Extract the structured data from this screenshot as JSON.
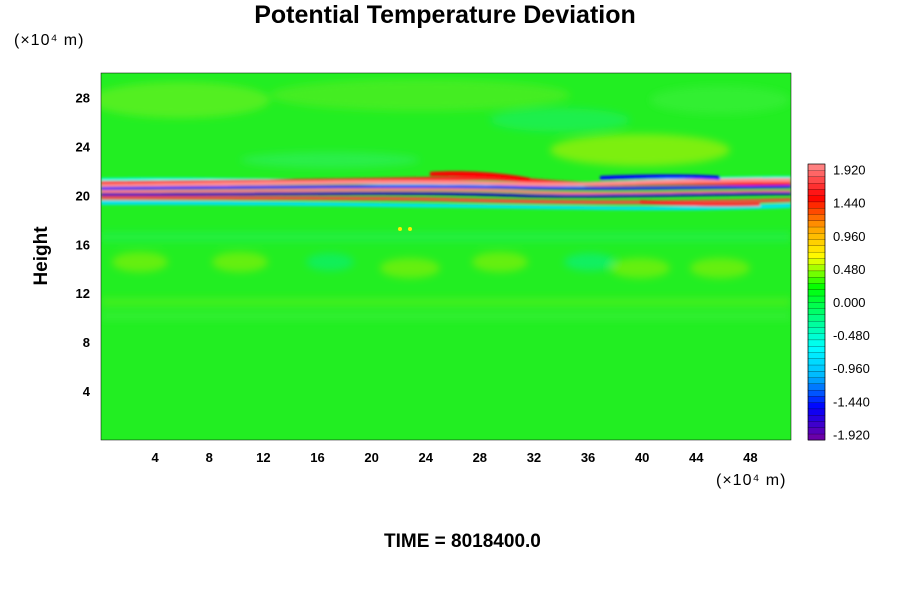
{
  "chart_data": {
    "type": "heatmap",
    "title": "Potential Temperature Deviation",
    "ylabel": "Height",
    "xlabel": "",
    "x_unit": "(×10⁴ m)",
    "y_unit": "(×10⁴ m)",
    "xlim": [
      0,
      51
    ],
    "ylim": [
      0,
      30
    ],
    "x_ticks": [
      "4",
      "8",
      "12",
      "16",
      "20",
      "24",
      "28",
      "32",
      "36",
      "40",
      "44",
      "48"
    ],
    "y_ticks": [
      "4",
      "8",
      "12",
      "16",
      "20",
      "24",
      "28"
    ],
    "colorbar": {
      "range": [
        -2.0,
        2.0
      ],
      "labels": [
        "1.920",
        "1.440",
        "0.960",
        "0.480",
        "0.000",
        "-0.480",
        "-0.960",
        "-1.440",
        "-1.920"
      ],
      "colormap": [
        "#6a00a8",
        "#0000ff",
        "#00b4ff",
        "#00ffff",
        "#00ff80",
        "#00ff00",
        "#ffff00",
        "#ffa000",
        "#ff0000",
        "#ff8080"
      ]
    },
    "field_description": "Near-zero deviation (green) over most of the domain, with a strong thin layer of alternating positive and negative deviation around height 19–22 (×10⁴ m) and weak wave structures between heights 10 and 18.",
    "time_label": "TIME = 8018400.0"
  }
}
